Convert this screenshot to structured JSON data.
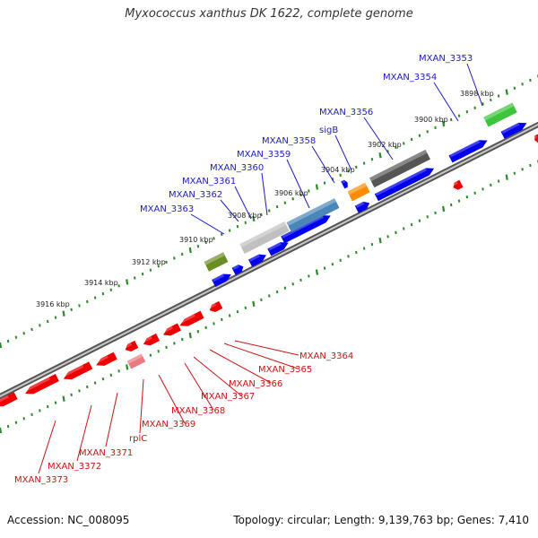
{
  "title": "Myxococcus xanthus DK 1622, complete genome",
  "footer": {
    "accession": "Accession: NC_008095",
    "summary": "Topology: circular; Length: 9,139,763 bp; Genes: 7,410"
  },
  "colors": {
    "plus_strand": "#0000ee",
    "minus_strand": "#ee0000",
    "plus_label": "#1a1ad0",
    "minus_label": "#d01010",
    "backbone": "#777777",
    "ruler_tick": "#2a8a2a"
  },
  "ruler_labels": [
    "3898 kbp",
    "3900 kbp",
    "3902 kbp",
    "3904 kbp",
    "3906 kbp",
    "3908 kbp",
    "3910 kbp",
    "3912 kbp",
    "3914 kbp",
    "3916 kbp"
  ],
  "plus_gene_labels": [
    "MXAN_3353",
    "MXAN_3354",
    "MXAN_3356",
    "sigB",
    "MXAN_3358",
    "MXAN_3359",
    "MXAN_3360",
    "MXAN_3361",
    "MXAN_3362",
    "MXAN_3363"
  ],
  "minus_gene_labels": [
    "MXAN_3364",
    "MXAN_3365",
    "MXAN_3366",
    "MXAN_3367",
    "MXAN_3368",
    "MXAN_3369",
    "rplC",
    "MXAN_3371",
    "MXAN_3372",
    "MXAN_3373"
  ]
}
